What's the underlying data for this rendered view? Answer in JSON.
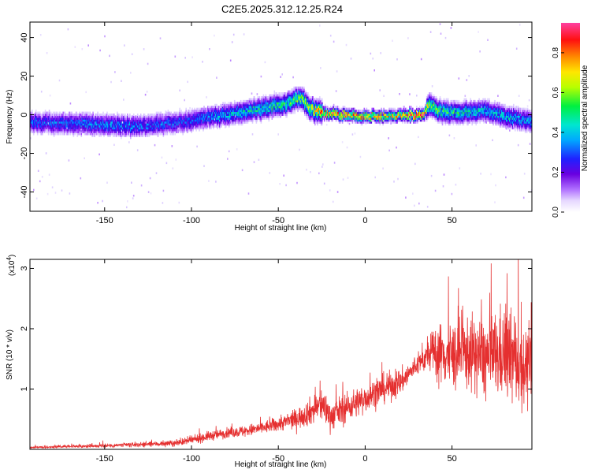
{
  "title": "C2E5.2025.312.12.25.R24",
  "colors": {
    "snr_line": "#e53030",
    "colormap": [
      "#ffffff",
      "#d8c8ff",
      "#9b30ff",
      "#5a00d8",
      "#1a1aff",
      "#00a8ff",
      "#00e0d0",
      "#00f040",
      "#c8ff00",
      "#ffe000",
      "#ff8000",
      "#ff0000",
      "#ff40a0"
    ]
  },
  "chart_data": [
    {
      "type": "heatmap",
      "xlabel": "Height of straight line (km)",
      "ylabel": "Frequency (Hz)",
      "xlim": [
        -193,
        96
      ],
      "ylim": [
        -50,
        48
      ],
      "xticks": [
        -150,
        -100,
        -50,
        0,
        50
      ],
      "yticks": [
        -40,
        -20,
        0,
        20,
        40
      ],
      "xtick_labels": [
        "-150",
        "-100",
        "-50",
        "0",
        "50"
      ],
      "ytick_labels": [
        "-40",
        "-20",
        "0",
        "20",
        "40"
      ],
      "ridge": {
        "x": [
          -193,
          -150,
          -130,
          -100,
          -80,
          -60,
          -45,
          -38,
          -32,
          -25,
          -15,
          0,
          15,
          33,
          37,
          42,
          55,
          70,
          85,
          96
        ],
        "freq": [
          -4,
          -5,
          -6,
          -3,
          0,
          3,
          6,
          9,
          3,
          1,
          0,
          -1,
          -0.5,
          0,
          5,
          2,
          1,
          2,
          -2,
          -3
        ],
        "peak_amplitude": [
          0.35,
          0.4,
          0.38,
          0.35,
          0.45,
          0.5,
          0.55,
          0.6,
          0.65,
          0.8,
          0.95,
          0.8,
          0.75,
          0.95,
          0.6,
          0.55,
          0.5,
          0.45,
          0.45,
          0.4
        ]
      },
      "colorbar": {
        "label": "Normalized spectral amplitude",
        "range": [
          0,
          0.95
        ],
        "ticks": [
          0.0,
          0.2,
          0.4,
          0.6,
          0.8
        ],
        "tick_labels": [
          "0.0",
          "0.2",
          "0.4",
          "0.6",
          "0.8"
        ]
      }
    },
    {
      "type": "line",
      "xlabel": "Height of straight line (km)",
      "ylabel": "SNR (10 * v/v)",
      "multiplier": "(x10",
      "multiplier_exp": "4",
      "multiplier_close": ")",
      "xlim": [
        -193,
        96
      ],
      "ylim": [
        0,
        3.15
      ],
      "xticks": [
        -150,
        -100,
        -50,
        0,
        50
      ],
      "yticks": [
        1,
        2,
        3
      ],
      "xtick_labels": [
        "-150",
        "-100",
        "-50",
        "0",
        "50"
      ],
      "ytick_labels": [
        "1",
        "2",
        "3"
      ],
      "series": [
        {
          "x": [
            -193,
            -170,
            -150,
            -130,
            -110,
            -100,
            -90,
            -80,
            -70,
            -60,
            -50,
            -40,
            -30,
            -25,
            -20,
            -10,
            0,
            10,
            20,
            30,
            38,
            40,
            50,
            60,
            70,
            80,
            90,
            96
          ],
          "values": [
            0.03,
            0.05,
            0.06,
            0.08,
            0.1,
            0.15,
            0.22,
            0.27,
            0.3,
            0.35,
            0.42,
            0.5,
            0.65,
            0.75,
            0.55,
            0.7,
            0.85,
            1.0,
            1.1,
            1.4,
            1.6,
            1.6,
            1.55,
            1.6,
            1.5,
            1.6,
            1.4,
            1.3
          ],
          "noise": [
            0.02,
            0.03,
            0.04,
            0.05,
            0.06,
            0.08,
            0.1,
            0.1,
            0.12,
            0.13,
            0.15,
            0.2,
            0.3,
            0.35,
            0.3,
            0.3,
            0.3,
            0.3,
            0.28,
            0.2,
            0.35,
            0.6,
            0.7,
            0.75,
            0.85,
            0.95,
            0.9,
            0.7
          ]
        }
      ]
    }
  ]
}
